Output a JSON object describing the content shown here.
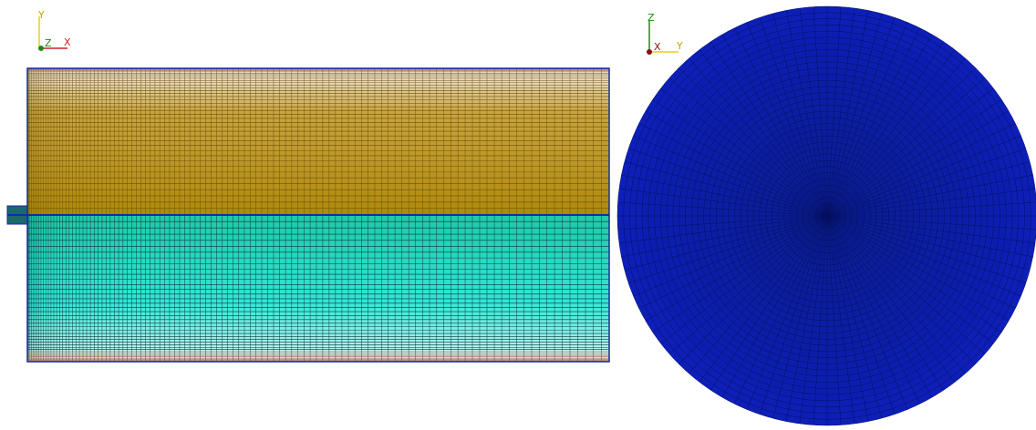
{
  "left_view": {
    "axes": {
      "vertical": "Y",
      "out_of_plane": "Z",
      "horizontal": "X"
    }
  },
  "right_view": {
    "axes": {
      "vertical": "Z",
      "out_of_plane": "X",
      "horizontal": "Y"
    }
  }
}
